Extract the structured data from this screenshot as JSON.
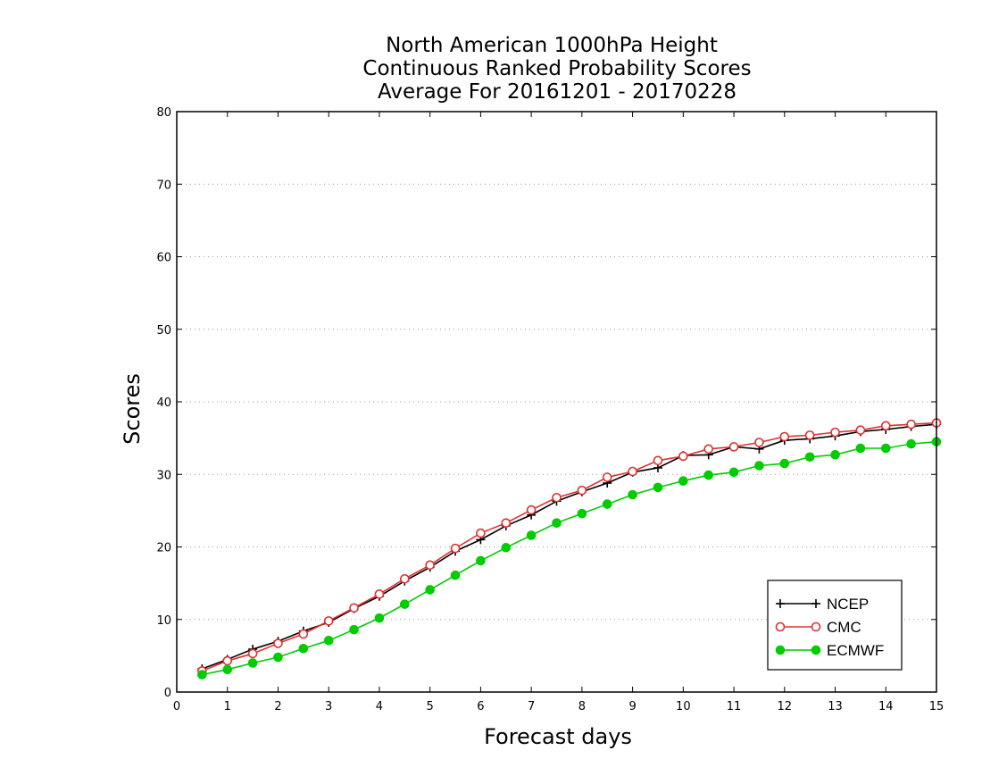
{
  "chart_data": {
    "type": "line",
    "title_lines": [
      "North American 1000hPa Height",
      "Continuous Ranked Probability Scores",
      "Average For 20161201 - 20170228"
    ],
    "xlabel": "Forecast days",
    "ylabel": "Scores",
    "xlim": [
      0,
      15
    ],
    "ylim": [
      0,
      80
    ],
    "x_ticks": [
      0,
      1,
      2,
      3,
      4,
      5,
      6,
      7,
      8,
      9,
      10,
      11,
      12,
      13,
      14,
      15
    ],
    "y_ticks": [
      0,
      10,
      20,
      30,
      40,
      50,
      60,
      70,
      80
    ],
    "grid": "horizontal-dotted",
    "legend_position": "bottom-right",
    "x": [
      0.5,
      1,
      1.5,
      2,
      2.5,
      3,
      3.5,
      4,
      4.5,
      5,
      5.5,
      6,
      6.5,
      7,
      7.5,
      8,
      8.5,
      9,
      9.5,
      10,
      10.5,
      11,
      11.5,
      12,
      12.5,
      13,
      13.5,
      14,
      14.5,
      15
    ],
    "series": [
      {
        "name": "NCEP",
        "color": "#000000",
        "marker": "plus",
        "values": [
          3.2,
          4.5,
          5.9,
          7.0,
          8.4,
          9.6,
          11.5,
          13.2,
          15.3,
          17.2,
          19.4,
          21.0,
          22.9,
          24.4,
          26.3,
          27.6,
          28.8,
          30.3,
          30.9,
          32.6,
          32.7,
          33.8,
          33.5,
          34.7,
          34.9,
          35.3,
          35.9,
          36.2,
          36.6,
          36.9
        ]
      },
      {
        "name": "CMC",
        "color": "#e03030",
        "marker": "open-circle",
        "values": [
          2.9,
          4.3,
          5.3,
          6.7,
          8.0,
          9.8,
          11.6,
          13.5,
          15.6,
          17.5,
          19.8,
          21.9,
          23.3,
          25.1,
          26.8,
          27.8,
          29.6,
          30.4,
          31.9,
          32.5,
          33.5,
          33.8,
          34.4,
          35.2,
          35.4,
          35.8,
          36.1,
          36.7,
          36.9,
          37.1
        ]
      },
      {
        "name": "ECMWF",
        "color": "#00cc00",
        "marker": "filled-circle",
        "values": [
          2.4,
          3.1,
          4.0,
          4.8,
          6.0,
          7.1,
          8.6,
          10.2,
          12.1,
          14.1,
          16.1,
          18.1,
          19.9,
          21.6,
          23.3,
          24.6,
          25.9,
          27.2,
          28.2,
          29.1,
          29.9,
          30.3,
          31.2,
          31.5,
          32.4,
          32.7,
          33.6,
          33.6,
          34.2,
          34.5
        ]
      }
    ]
  }
}
